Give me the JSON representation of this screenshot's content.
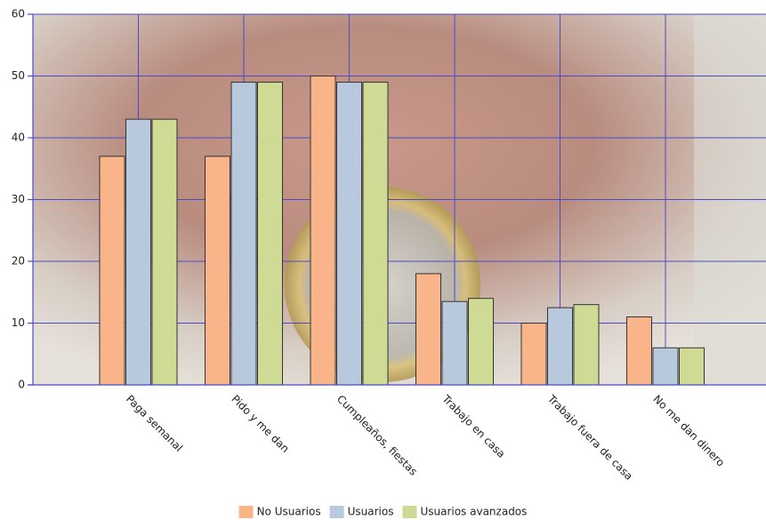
{
  "chart_data": {
    "type": "bar",
    "categories": [
      "Paga semanal",
      "Pido y me dan",
      "Cumpleaños, fiestas",
      "Trabajo en casa",
      "Trabajo fuera de casa",
      "No me dan dinero"
    ],
    "series": [
      {
        "name": "No Usuarios",
        "color": "#f9b48a",
        "values": [
          37,
          37,
          50,
          18,
          10,
          11
        ]
      },
      {
        "name": "Usuarios",
        "color": "#b8c9dd",
        "values": [
          43,
          49,
          49,
          13.5,
          12.5,
          6
        ]
      },
      {
        "name": "Usuarios avanzados",
        "color": "#cfdb94",
        "values": [
          43,
          49,
          49,
          14,
          13,
          6
        ]
      }
    ],
    "ylim": [
      0,
      60
    ],
    "yticks": [
      0,
      10,
      20,
      30,
      40,
      50,
      60
    ],
    "grid": true,
    "legend": "bottom"
  }
}
